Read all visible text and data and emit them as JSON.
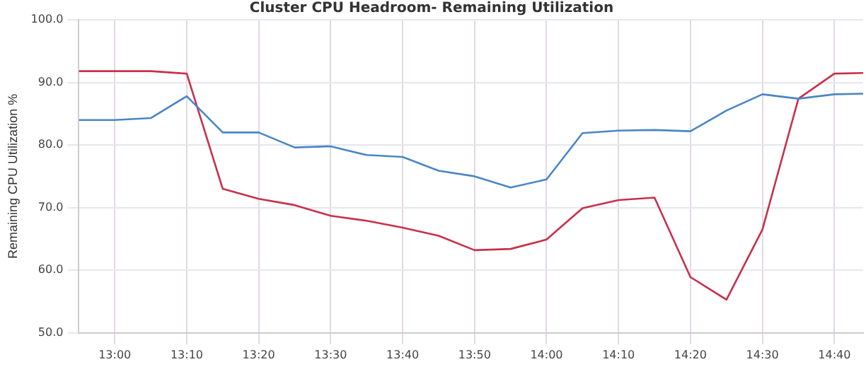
{
  "chart_data": {
    "type": "line",
    "title": "Cluster CPU Headroom- Remaining Utilization",
    "ylabel": "Remaining CPU Utilization %",
    "x": [
      12.9167,
      13,
      13.0833,
      13.1667,
      13.25,
      13.3333,
      13.4167,
      13.5,
      13.5833,
      13.6667,
      13.75,
      13.8333,
      13.9167,
      14,
      14.0833,
      14.1667,
      14.25,
      14.3333,
      14.4167,
      14.5,
      14.5833,
      14.6667,
      14.7333
    ],
    "series": [
      {
        "color": "#4a86c5",
        "values": [
          84.0,
          84.0,
          84.3,
          87.8,
          82.0,
          82.0,
          79.6,
          79.8,
          78.4,
          78.1,
          75.9,
          75.0,
          73.2,
          74.5,
          81.9,
          82.3,
          82.4,
          82.2,
          85.5,
          88.1,
          87.4,
          88.1,
          88.2
        ]
      },
      {
        "color": "#c8304a",
        "values": [
          91.8,
          91.8,
          91.8,
          91.4,
          73.0,
          71.4,
          70.4,
          68.7,
          67.9,
          66.8,
          65.5,
          63.2,
          63.4,
          64.9,
          69.9,
          71.2,
          71.6,
          58.9,
          55.3,
          66.5,
          87.4,
          91.4,
          91.5
        ]
      }
    ],
    "xlim": [
      12.9167,
      14.7333
    ],
    "xticks": [
      {
        "value": 13,
        "label": "13:00"
      },
      {
        "value": 13.1667,
        "label": "13:10"
      },
      {
        "value": 13.3333,
        "label": "13:20"
      },
      {
        "value": 13.5,
        "label": "13:30"
      },
      {
        "value": 13.6667,
        "label": "13:40"
      },
      {
        "value": 13.8333,
        "label": "13:50"
      },
      {
        "value": 14,
        "label": "14:00"
      },
      {
        "value": 14.1667,
        "label": "14:10"
      },
      {
        "value": 14.3333,
        "label": "14:20"
      },
      {
        "value": 14.5,
        "label": "14:30"
      },
      {
        "value": 14.6667,
        "label": "14:40"
      }
    ],
    "ylim": [
      50,
      100
    ],
    "yticks": [
      {
        "value": 50,
        "label": "50.0"
      },
      {
        "value": 60,
        "label": "60.0"
      },
      {
        "value": 70,
        "label": "70.0"
      },
      {
        "value": 80,
        "label": "80.0"
      },
      {
        "value": 90,
        "label": "90.0"
      },
      {
        "value": 100,
        "label": "100.0"
      }
    ],
    "grid": true,
    "marker": "none",
    "line_style": "solid"
  }
}
